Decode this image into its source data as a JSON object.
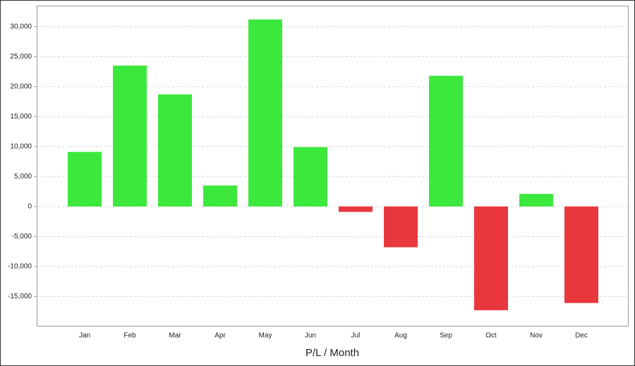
{
  "chart_data": {
    "type": "bar",
    "x_label": "P/L / Month",
    "categories": [
      "Jan",
      "Feb",
      "Mar",
      "Apr",
      "May",
      "Jun",
      "Jul",
      "Aug",
      "Sep",
      "Oct",
      "Nov",
      "Dec"
    ],
    "values": [
      9100,
      23500,
      18700,
      3500,
      31200,
      9900,
      -900,
      -6800,
      21800,
      -17300,
      2100,
      -16100
    ],
    "color": "#3de83d",
    "negative_color": "#e8373d",
    "ylim": [
      -19900,
      33500
    ],
    "yticks": [
      {
        "value": -15000,
        "label": "-15,000"
      },
      {
        "value": -10000,
        "label": "-10,000"
      },
      {
        "value": -5000,
        "label": "-5,000"
      },
      0,
      {
        "value": 5000,
        "label": "5,000"
      },
      {
        "value": 10000,
        "label": "10,000"
      },
      {
        "value": 15000,
        "label": "15,000"
      },
      {
        "value": 20000,
        "label": "20,000"
      },
      {
        "value": 25000,
        "label": "25,000"
      },
      {
        "value": 30000,
        "label": "30,000"
      }
    ],
    "grid": true
  }
}
